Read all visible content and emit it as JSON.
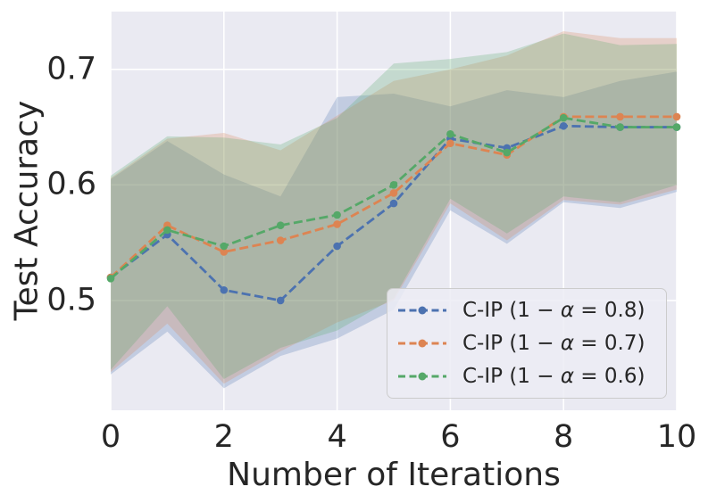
{
  "figure": {
    "background": "#ffffff",
    "plot_background": "#eaeaf2",
    "grid_color": "#ffffff",
    "text_color": "#262626"
  },
  "chart_data": {
    "type": "line",
    "title": "",
    "xlabel": "Number of Iterations",
    "ylabel": "Test Accuracy",
    "x": [
      0,
      1,
      2,
      3,
      4,
      5,
      6,
      7,
      8,
      9,
      10
    ],
    "xlim": [
      0,
      10
    ],
    "ylim": [
      0.405,
      0.75
    ],
    "grid": true,
    "legend_position": "lower-right",
    "band_alpha": 0.25,
    "xticks": {
      "values": [
        0,
        2,
        4,
        6,
        8,
        10
      ],
      "labels": [
        "0",
        "2",
        "4",
        "6",
        "8",
        "10"
      ]
    },
    "yticks": {
      "values": [
        0.5,
        0.6,
        0.7
      ],
      "labels": [
        "0.5",
        "0.6",
        "0.7"
      ]
    },
    "series": [
      {
        "label": "C-IP (1 − α = 0.8)",
        "color": "#4c72b0",
        "linestyle": "dashed",
        "marker": "circle",
        "values": [
          0.52,
          0.557,
          0.509,
          0.5,
          0.547,
          0.584,
          0.64,
          0.632,
          0.651,
          0.65,
          0.65
        ],
        "band_lower": [
          0.436,
          0.473,
          0.424,
          0.452,
          0.467,
          0.492,
          0.578,
          0.549,
          0.585,
          0.58,
          0.594
        ],
        "band_upper": [
          0.605,
          0.638,
          0.609,
          0.59,
          0.676,
          0.679,
          0.668,
          0.682,
          0.676,
          0.69,
          0.698
        ]
      },
      {
        "label": "C-IP (1 − α = 0.7)",
        "color": "#dd8452",
        "linestyle": "dashed",
        "marker": "circle",
        "values": [
          0.52,
          0.565,
          0.542,
          0.552,
          0.566,
          0.593,
          0.636,
          0.626,
          0.659,
          0.659,
          0.659
        ],
        "band_lower": [
          0.438,
          0.48,
          0.428,
          0.456,
          0.481,
          0.5,
          0.584,
          0.552,
          0.587,
          0.583,
          0.596
        ],
        "band_upper": [
          0.606,
          0.64,
          0.645,
          0.63,
          0.66,
          0.69,
          0.7,
          0.712,
          0.733,
          0.727,
          0.727
        ]
      },
      {
        "label": "C-IP (1 − α = 0.6)",
        "color": "#55a868",
        "linestyle": "dashed",
        "marker": "circle",
        "values": [
          0.519,
          0.561,
          0.547,
          0.565,
          0.574,
          0.6,
          0.644,
          0.628,
          0.658,
          0.65,
          0.65
        ],
        "band_lower": [
          0.44,
          0.495,
          0.432,
          0.459,
          0.474,
          0.502,
          0.588,
          0.558,
          0.59,
          0.585,
          0.6
        ],
        "band_upper": [
          0.608,
          0.642,
          0.641,
          0.635,
          0.658,
          0.705,
          0.709,
          0.715,
          0.731,
          0.721,
          0.722
        ]
      }
    ]
  }
}
